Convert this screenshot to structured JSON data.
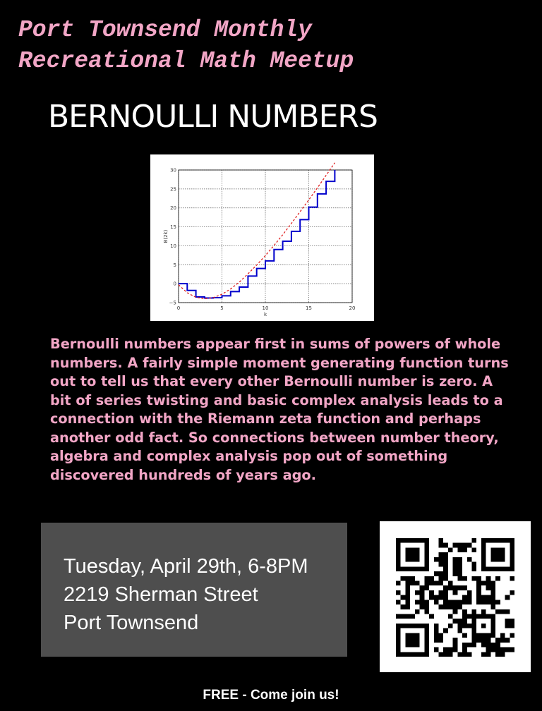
{
  "header": {
    "line1": "Port Townsend Monthly",
    "line2": "Recreational Math Meetup"
  },
  "title": "BERNOULLI NUMBERS",
  "chart_data": {
    "type": "line",
    "xlabel": "k",
    "ylabel": "B(2k)",
    "xlim": [
      0,
      20
    ],
    "ylim": [
      -5,
      30
    ],
    "xticks": [
      "0",
      "5",
      "10",
      "15",
      "20"
    ],
    "yticks": [
      "−5",
      "0",
      "5",
      "10",
      "15",
      "20",
      "25",
      "30"
    ],
    "grid": true,
    "series": [
      {
        "style": "step",
        "color": "#0000cc",
        "x": [
          0,
          1,
          2,
          3,
          4,
          5,
          6,
          7,
          8,
          9,
          10,
          11,
          12,
          13,
          14,
          15,
          16,
          17,
          18
        ],
        "y": [
          0,
          -1.8,
          -3.5,
          -3.8,
          -3.7,
          -3.2,
          -2.1,
          -0.9,
          2.0,
          4.0,
          6.0,
          9.0,
          11.2,
          13.8,
          16.9,
          20.2,
          23.7,
          27.0,
          30
        ]
      },
      {
        "style": "dashed",
        "color": "#e02020",
        "x": [
          0,
          1,
          2,
          3,
          4,
          5,
          6,
          7,
          8,
          9,
          10,
          11,
          12,
          13,
          14,
          15,
          16,
          17,
          18
        ],
        "y": [
          -0.3,
          -2.4,
          -3.6,
          -4.0,
          -3.7,
          -2.8,
          -1.4,
          0.4,
          2.6,
          4.9,
          7.4,
          10.1,
          12.9,
          15.9,
          19.0,
          22.1,
          25.3,
          28.6,
          31.9
        ]
      }
    ]
  },
  "description": "Bernoulli numbers appear first in sums of powers of whole numbers.  A fairly simple moment generating function turns out to tell us that every other Bernoulli number is zero.  A bit of series twisting and basic complex analysis leads to a connection with the Riemann zeta function and perhaps another odd fact.  So connections between number theory, algebra and complex analysis pop out of something discovered hundreds of years ago.",
  "event": {
    "datetime": "Tuesday, April 29th, 6-8PM",
    "address": "2219 Sherman Street",
    "city": "Port Townsend"
  },
  "qr_icon": "qr-code-icon",
  "footer": "FREE - Come join us!",
  "colors": {
    "background": "#000000",
    "pink": "#f2a6c6",
    "info_box": "#4e4e4e"
  }
}
